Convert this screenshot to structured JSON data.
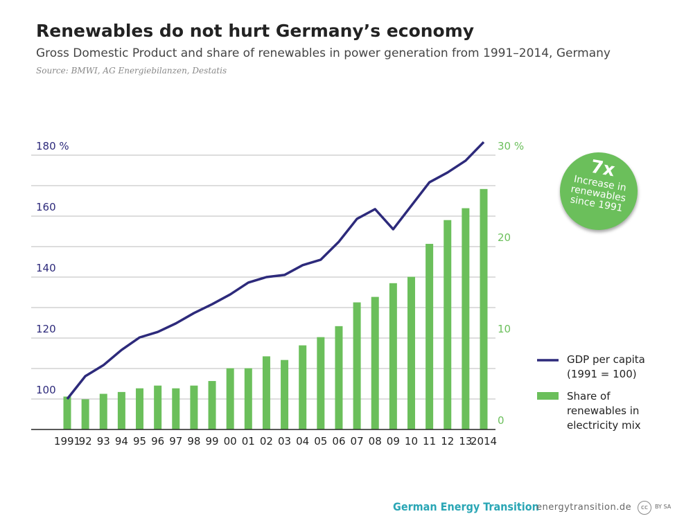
{
  "chart_data": {
    "type": "combo",
    "title": "Renewables do not hurt Germany’s economy",
    "subtitle": "Gross Domestic Product and share of renewables in power generation from 1991–2014, Germany",
    "source": "Source: BMWI,  AG Energiebilanzen, Destatis",
    "categories": [
      "1991",
      "92",
      "93",
      "94",
      "95",
      "96",
      "97",
      "98",
      "99",
      "00",
      "01",
      "02",
      "03",
      "04",
      "05",
      "06",
      "07",
      "08",
      "09",
      "10",
      "11",
      "12",
      "13",
      "2014"
    ],
    "ylim": [
      90,
      180
    ],
    "yticks": [
      100,
      120,
      140,
      160,
      {
        "value": 180,
        "label": "180 %"
      }
    ],
    "yminorticks": [
      90,
      110,
      130,
      150,
      170
    ],
    "y2lim": [
      0,
      30
    ],
    "y2ticks": [
      0,
      10,
      20,
      {
        "value": 30,
        "label": "30 %"
      }
    ],
    "grid": true,
    "series": [
      {
        "name": "GDP per capita (1991 = 100)",
        "type": "line",
        "axis": "y",
        "color": "#2d2a7b",
        "values": [
          100,
          107.5,
          111.1,
          116.1,
          120.2,
          122,
          124.8,
          128.2,
          131.1,
          134.3,
          138.2,
          140,
          140.7,
          143.9,
          145.7,
          151.6,
          159.1,
          162.3,
          155.7,
          163.4,
          171.1,
          174.3,
          178.2,
          184.3
        ]
      },
      {
        "name": "Share of renewables in electricity mix",
        "type": "bar",
        "axis": "y2",
        "color": "#6bbf5b",
        "values": [
          3.6,
          3.3,
          3.9,
          4.1,
          4.5,
          4.8,
          4.5,
          4.8,
          5.3,
          6.7,
          6.7,
          8.0,
          7.6,
          9.2,
          10.1,
          11.3,
          13.9,
          14.5,
          16.0,
          16.7,
          20.3,
          22.9,
          24.2,
          26.3
        ]
      }
    ],
    "annotation": {
      "headline": "7x",
      "text": "Increase in renewables since 1991"
    }
  },
  "footer": {
    "brand": "German Energy Transition",
    "url": "energytransition.de",
    "license_icon": "cc",
    "license": "BY SA"
  }
}
